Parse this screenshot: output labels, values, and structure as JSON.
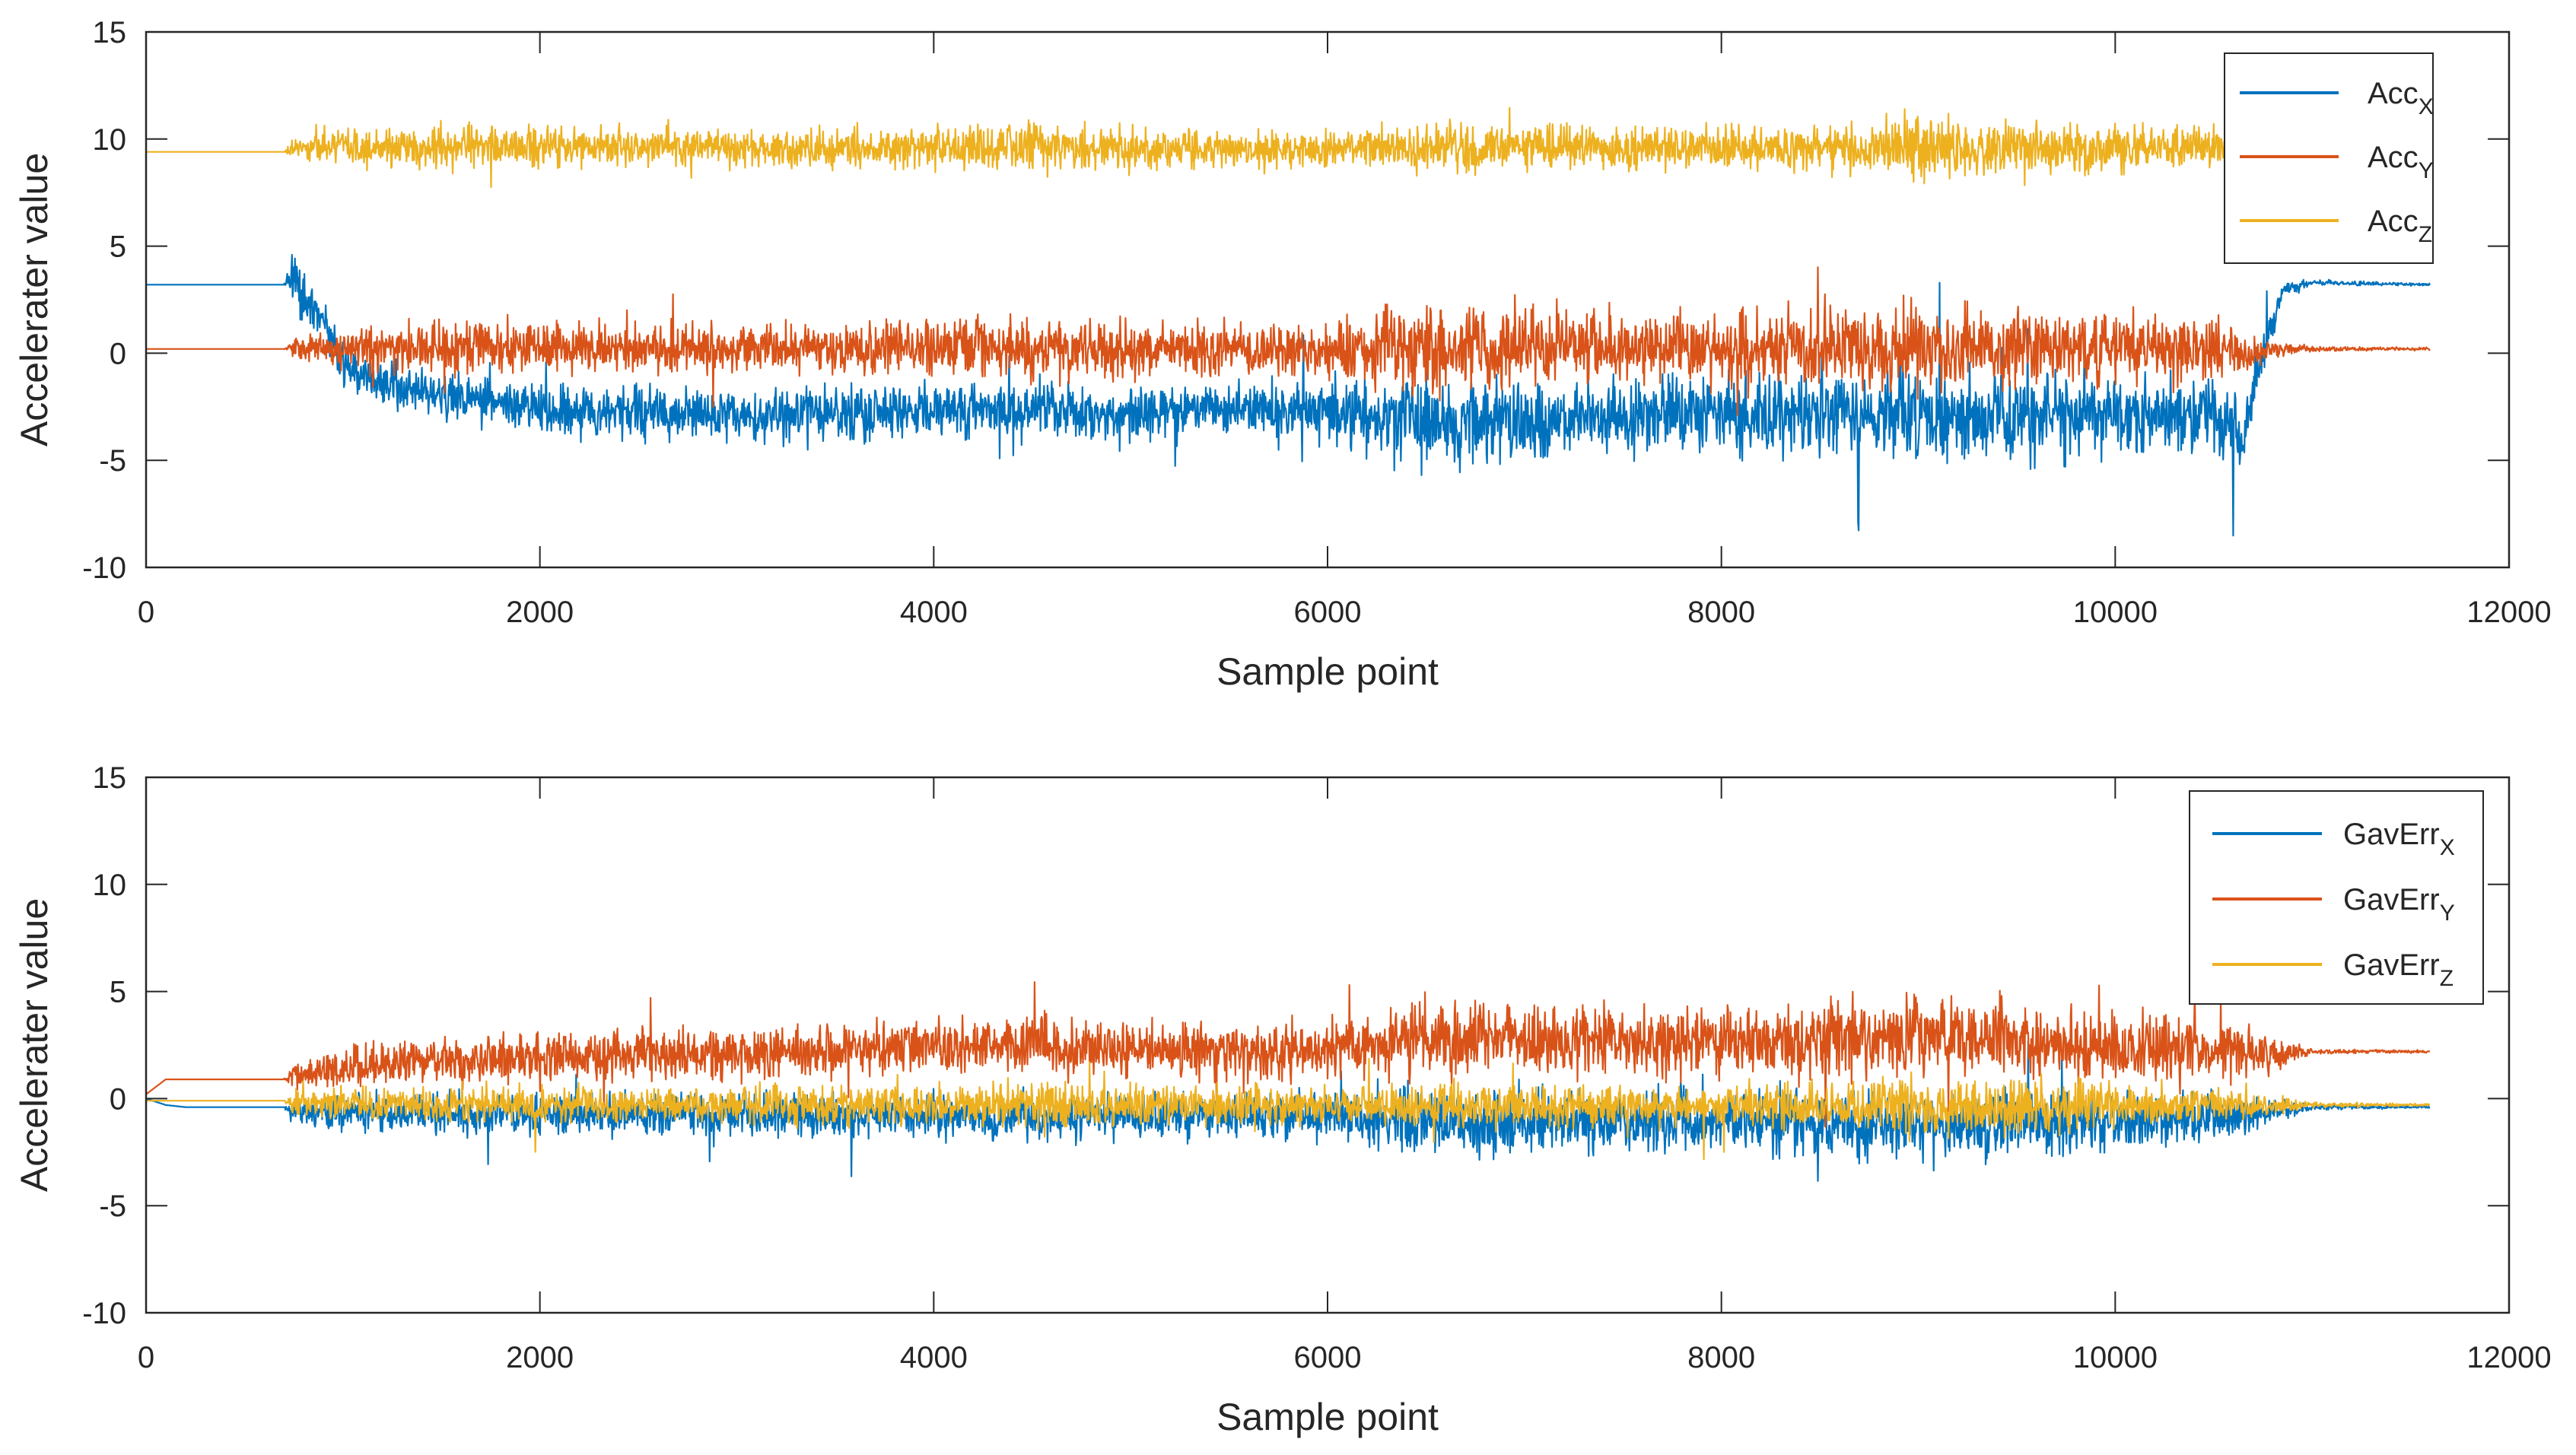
{
  "chart_data": [
    {
      "type": "line",
      "xlabel": "Sample point",
      "ylabel": "Accelerater value",
      "xlim": [
        0,
        12000
      ],
      "ylim": [
        -10,
        15
      ],
      "xticks": [
        0,
        2000,
        4000,
        6000,
        8000,
        10000,
        12000
      ],
      "yticks": [
        -10,
        -5,
        0,
        5,
        10,
        15
      ],
      "grid": false,
      "legend_position": "top-right",
      "series": [
        {
          "name": "Acc",
          "sub": "X",
          "color": "#0072BD",
          "x": [
            0,
            700,
            740,
            800,
            900,
            1000,
            1200,
            1500,
            2000,
            2500,
            3000,
            3500,
            4000,
            4500,
            5000,
            5500,
            6000,
            6500,
            7000,
            7500,
            8000,
            8500,
            9000,
            9500,
            10000,
            10500,
            10650,
            10750,
            10850,
            11000,
            11600
          ],
          "values": [
            3.2,
            3.2,
            3.8,
            2.5,
            1.5,
            -0.5,
            -1.5,
            -2.0,
            -2.6,
            -2.8,
            -2.9,
            -2.8,
            -2.6,
            -2.7,
            -2.8,
            -2.6,
            -2.8,
            -3.3,
            -3.1,
            -3.0,
            -2.9,
            -3.0,
            -2.9,
            -3.0,
            -2.8,
            -3.0,
            -4.0,
            0.0,
            3.0,
            3.3,
            3.2
          ],
          "noise": [
            0,
            0,
            1.0,
            0.9,
            0.8,
            0.8,
            0.9,
            0.9,
            1.0,
            1.0,
            1.0,
            1.0,
            1.1,
            1.2,
            1.1,
            1.0,
            1.2,
            1.8,
            1.6,
            1.4,
            1.6,
            1.6,
            1.8,
            1.7,
            1.5,
            1.5,
            1.2,
            1.0,
            0.4,
            0.1,
            0.05
          ]
        },
        {
          "name": "Acc",
          "sub": "Y",
          "color": "#D95319",
          "x": [
            0,
            700,
            740,
            1000,
            1500,
            2000,
            2500,
            3000,
            3500,
            4000,
            4500,
            5000,
            5500,
            6000,
            6500,
            7000,
            7500,
            8000,
            8500,
            9000,
            9500,
            10000,
            10500,
            10650,
            10800,
            11000,
            11600
          ],
          "values": [
            0.2,
            0.2,
            0.3,
            0.2,
            0.3,
            0.3,
            0.2,
            0.2,
            0.2,
            0.3,
            0.3,
            0.2,
            0.2,
            0.2,
            0.3,
            0.3,
            0.3,
            0.2,
            0.3,
            0.3,
            0.3,
            0.2,
            0.2,
            0.0,
            0.2,
            0.2,
            0.2
          ],
          "noise": [
            0,
            0,
            0.4,
            0.9,
            1.0,
            1.0,
            0.9,
            0.9,
            0.9,
            1.1,
            1.2,
            1.1,
            1.0,
            1.1,
            1.6,
            1.5,
            1.3,
            1.4,
            1.5,
            1.7,
            1.6,
            1.3,
            1.2,
            0.8,
            0.4,
            0.1,
            0.05
          ]
        },
        {
          "name": "Acc",
          "sub": "Z",
          "color": "#EDB120",
          "x": [
            0,
            700,
            740,
            1000,
            1500,
            2000,
            2500,
            3000,
            3500,
            4000,
            4500,
            5000,
            5500,
            6000,
            6500,
            7000,
            7500,
            8000,
            8500,
            9000,
            9500,
            10000,
            10500,
            10800,
            11000
          ],
          "values": [
            9.4,
            9.4,
            9.5,
            9.6,
            9.6,
            9.7,
            9.6,
            9.6,
            9.6,
            9.6,
            9.7,
            9.6,
            9.5,
            9.5,
            9.6,
            9.6,
            9.6,
            9.6,
            9.6,
            9.6,
            9.6,
            9.6,
            9.6,
            9.6,
            9.6
          ],
          "noise": [
            0,
            0,
            0.4,
            0.7,
            0.8,
            0.8,
            0.7,
            0.7,
            0.8,
            0.8,
            1.0,
            0.8,
            0.7,
            0.7,
            0.9,
            0.9,
            0.8,
            0.8,
            0.9,
            1.2,
            1.1,
            0.9,
            0.8,
            0.5,
            0.3
          ]
        }
      ]
    },
    {
      "type": "line",
      "xlabel": "Sample point",
      "ylabel": "Accelerater value",
      "xlim": [
        0,
        12000
      ],
      "ylim": [
        -10,
        15
      ],
      "xticks": [
        0,
        2000,
        4000,
        6000,
        8000,
        10000,
        12000
      ],
      "yticks": [
        -10,
        -5,
        0,
        5,
        10,
        15
      ],
      "grid": false,
      "legend_position": "top-right",
      "series": [
        {
          "name": "GavErr",
          "sub": "X",
          "color": "#0072BD",
          "x": [
            0,
            100,
            200,
            700,
            740,
            1000,
            2000,
            3000,
            4000,
            5000,
            6000,
            6500,
            7000,
            7500,
            8000,
            8500,
            9000,
            9500,
            10000,
            10500,
            10800,
            11000,
            11600
          ],
          "values": [
            0.0,
            -0.3,
            -0.4,
            -0.4,
            -0.6,
            -0.6,
            -0.7,
            -0.8,
            -0.8,
            -0.8,
            -0.8,
            -1.2,
            -1.1,
            -1.0,
            -1.1,
            -1.1,
            -1.2,
            -1.2,
            -1.0,
            -0.9,
            -0.6,
            -0.4,
            -0.4
          ],
          "noise": [
            0,
            0,
            0,
            0,
            0.5,
            0.7,
            0.8,
            0.8,
            0.9,
            0.9,
            0.9,
            1.3,
            1.2,
            1.1,
            1.2,
            1.2,
            1.3,
            1.3,
            1.1,
            1.0,
            0.5,
            0.1,
            0.05
          ]
        },
        {
          "name": "GavErr",
          "sub": "Y",
          "color": "#D95319",
          "x": [
            0,
            100,
            700,
            740,
            1000,
            1500,
            2000,
            2500,
            3000,
            3500,
            4000,
            4500,
            5000,
            5500,
            6000,
            6500,
            7000,
            7500,
            8000,
            8500,
            9000,
            9500,
            10000,
            10500,
            10800,
            11000,
            11600
          ],
          "values": [
            0.2,
            0.9,
            0.9,
            1.1,
            1.5,
            1.8,
            2.0,
            2.1,
            2.2,
            2.3,
            2.4,
            2.5,
            2.3,
            2.2,
            2.3,
            2.9,
            2.8,
            2.6,
            2.6,
            2.7,
            2.9,
            2.7,
            2.4,
            2.2,
            2.0,
            2.2,
            2.2
          ],
          "noise": [
            0,
            0,
            0,
            0.5,
            0.8,
            0.9,
            1.0,
            1.0,
            1.0,
            1.0,
            1.1,
            1.2,
            1.1,
            1.0,
            1.1,
            1.5,
            1.4,
            1.3,
            1.3,
            1.4,
            1.6,
            1.5,
            1.3,
            1.2,
            0.7,
            0.1,
            0.05
          ]
        },
        {
          "name": "GavErr",
          "sub": "Z",
          "color": "#EDB120",
          "x": [
            0,
            100,
            700,
            740,
            1000,
            2000,
            3000,
            4000,
            5000,
            6000,
            6500,
            7000,
            7500,
            8000,
            8500,
            9000,
            9500,
            10000,
            10500,
            10800,
            11000,
            11600
          ],
          "values": [
            -0.1,
            -0.1,
            -0.1,
            -0.2,
            -0.2,
            -0.3,
            -0.3,
            -0.3,
            -0.3,
            -0.3,
            -0.4,
            -0.4,
            -0.3,
            -0.3,
            -0.4,
            -0.4,
            -0.4,
            -0.3,
            -0.3,
            -0.3,
            -0.3,
            -0.3
          ],
          "noise": [
            0,
            0,
            0,
            0.4,
            0.6,
            0.7,
            0.7,
            0.8,
            0.8,
            0.7,
            0.9,
            0.9,
            0.8,
            0.8,
            0.9,
            1.1,
            1.0,
            0.8,
            0.7,
            0.4,
            0.1,
            0.05
          ]
        }
      ]
    }
  ]
}
